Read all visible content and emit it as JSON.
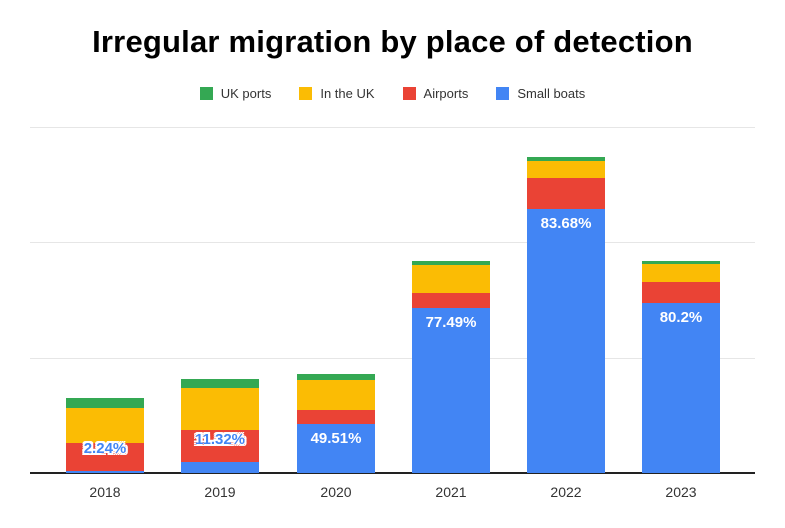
{
  "chart_data": {
    "type": "bar",
    "stacked": true,
    "title": "Irregular migration by place of detection",
    "categories": [
      "2018",
      "2019",
      "2020",
      "2021",
      "2022",
      "2023"
    ],
    "series": [
      {
        "name": "Small boats",
        "color": "#4285f4",
        "values": [
          290,
          1840,
          8450,
          28500,
          45750,
          29450
        ]
      },
      {
        "name": "Airports",
        "color": "#ea4335",
        "values": [
          4950,
          5550,
          2430,
          2600,
          5400,
          3650
        ]
      },
      {
        "name": "In the UK",
        "color": "#fbbc04",
        "values": [
          6100,
          7300,
          5200,
          4850,
          2950,
          3150
        ]
      },
      {
        "name": "UK ports",
        "color": "#34a853",
        "values": [
          1600,
          1560,
          990,
          830,
          570,
          470
        ]
      }
    ],
    "annotations": {
      "series": "Small boats",
      "labels": [
        "2.24%",
        "11.32%",
        "49.51%",
        "77.49%",
        "83.68%",
        "80.2%"
      ]
    },
    "legend": {
      "position": "top",
      "items": [
        "UK ports",
        "In the UK",
        "Airports",
        "Small boats"
      ]
    },
    "axes": {
      "y_labels_visible": false,
      "y_gridline_step": 20000,
      "ylim": [
        0,
        60000
      ],
      "grid": true
    }
  }
}
